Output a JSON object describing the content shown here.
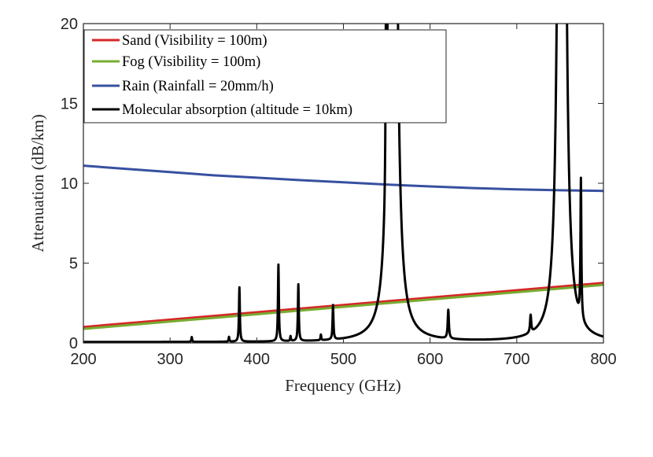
{
  "chart_data": {
    "type": "line",
    "title": "",
    "xlabel": "Frequency (GHz)",
    "ylabel": "Attenuation (dB/km)",
    "xlim": [
      200,
      800
    ],
    "ylim": [
      0,
      20
    ],
    "xticks": [
      200,
      300,
      400,
      500,
      600,
      700,
      800
    ],
    "yticks": [
      0,
      5,
      10,
      15,
      20
    ],
    "legend_position": "top-left",
    "series": [
      {
        "name": "Sand (Visibility = 100m)",
        "color": "#d62728",
        "x": [
          200,
          300,
          400,
          500,
          600,
          700,
          800
        ],
        "y": [
          1.0,
          1.46,
          1.92,
          2.38,
          2.84,
          3.3,
          3.76
        ]
      },
      {
        "name": "Fog (Visibility = 100m)",
        "color": "#77ac30",
        "x": [
          200,
          300,
          400,
          500,
          600,
          700,
          800
        ],
        "y": [
          0.88,
          1.34,
          1.8,
          2.26,
          2.72,
          3.18,
          3.64
        ]
      },
      {
        "name": "Rain (Rainfall = 20mm/h)",
        "color": "#3850a0",
        "x": [
          200,
          250,
          300,
          350,
          400,
          450,
          500,
          550,
          600,
          650,
          700,
          750,
          800
        ],
        "y": [
          11.1,
          10.9,
          10.7,
          10.5,
          10.35,
          10.2,
          10.06,
          9.92,
          9.8,
          9.7,
          9.62,
          9.56,
          9.52
        ]
      },
      {
        "name": "Molecular absorption (altitude = 10km)",
        "color": "#000000",
        "baseline": 0.05,
        "peaks": [
          {
            "f": 325,
            "h": 0.3,
            "w": 0.5
          },
          {
            "f": 368,
            "h": 0.3,
            "w": 0.5
          },
          {
            "f": 380,
            "h": 3.4,
            "w": 0.6
          },
          {
            "f": 425,
            "h": 4.8,
            "w": 0.6
          },
          {
            "f": 439,
            "h": 0.3,
            "w": 0.5
          },
          {
            "f": 448,
            "h": 3.55,
            "w": 0.6
          },
          {
            "f": 474,
            "h": 0.35,
            "w": 0.5
          },
          {
            "f": 488,
            "h": 2.15,
            "w": 0.6
          },
          {
            "f": 549,
            "h": 9.2,
            "w": 0.5
          },
          {
            "f": 557,
            "h": 300,
            "w": 1.6
          },
          {
            "f": 621,
            "h": 1.8,
            "w": 0.8
          },
          {
            "f": 716,
            "h": 1.1,
            "w": 0.8
          },
          {
            "f": 752,
            "h": 300,
            "w": 1.6
          },
          {
            "f": 774,
            "h": 8.7,
            "w": 0.6
          }
        ]
      }
    ]
  }
}
